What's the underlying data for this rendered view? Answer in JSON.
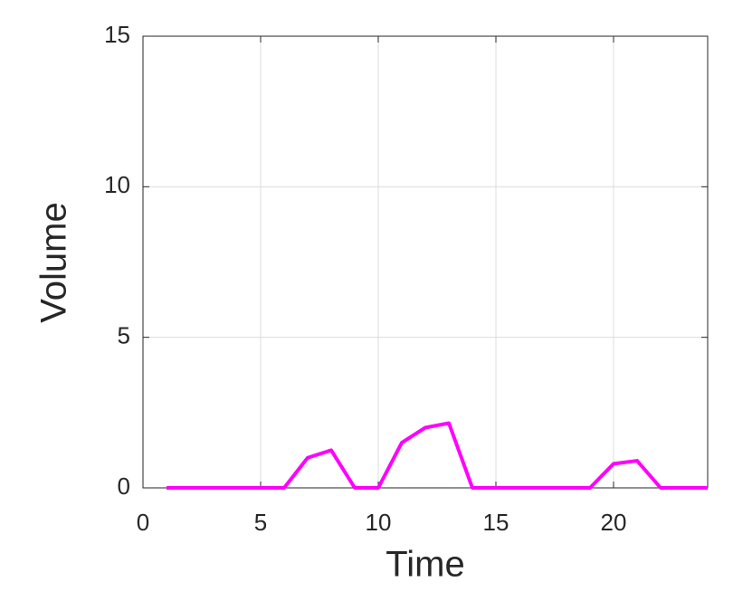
{
  "chart_data": {
    "type": "line",
    "x_label": "Time",
    "y_label": "Volume",
    "x": [
      1,
      2,
      3,
      4,
      5,
      6,
      7,
      8,
      9,
      10,
      11,
      12,
      13,
      14,
      15,
      16,
      17,
      18,
      19,
      20,
      21,
      22,
      23,
      24
    ],
    "series": [
      {
        "color": "#ff00ff",
        "values": [
          0,
          0,
          0,
          0,
          0,
          0,
          1.0,
          1.25,
          0,
          0,
          1.5,
          2.0,
          2.15,
          0,
          0,
          0,
          0,
          0,
          0,
          0.8,
          0.9,
          0,
          0,
          0
        ]
      }
    ],
    "xlim": [
      0,
      24
    ],
    "xticks": [
      0,
      5,
      10,
      15,
      20
    ],
    "ylim": [
      0,
      15
    ],
    "yticks": [
      0,
      5,
      10,
      15
    ],
    "grid": true
  }
}
